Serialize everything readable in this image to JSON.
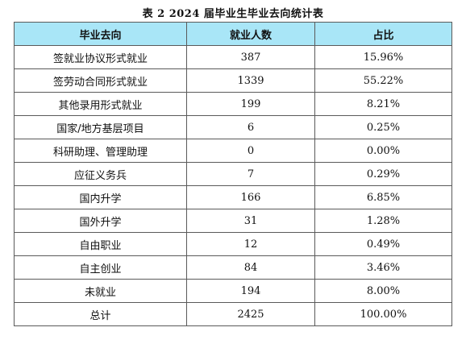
{
  "caption": "表 2   2024 届毕业生毕业去向统计表",
  "table": {
    "headers": [
      "毕业去向",
      "就业人数",
      "占比"
    ],
    "rows": [
      {
        "destination": "签就业协议形式就业",
        "count": "387",
        "ratio": "15.96%"
      },
      {
        "destination": "签劳动合同形式就业",
        "count": "1339",
        "ratio": "55.22%"
      },
      {
        "destination": "其他录用形式就业",
        "count": "199",
        "ratio": "8.21%"
      },
      {
        "destination": "国家/地方基层项目",
        "count": "6",
        "ratio": "0.25%"
      },
      {
        "destination": "科研助理、管理助理",
        "count": "0",
        "ratio": "0.00%"
      },
      {
        "destination": "应征义务兵",
        "count": "7",
        "ratio": "0.29%"
      },
      {
        "destination": "国内升学",
        "count": "166",
        "ratio": "6.85%"
      },
      {
        "destination": "国外升学",
        "count": "31",
        "ratio": "1.28%"
      },
      {
        "destination": "自由职业",
        "count": "12",
        "ratio": "0.49%"
      },
      {
        "destination": "自主创业",
        "count": "84",
        "ratio": "3.46%"
      },
      {
        "destination": "未就业",
        "count": "194",
        "ratio": "8.00%"
      },
      {
        "destination": "总计",
        "count": "2425",
        "ratio": "100.00%"
      }
    ]
  }
}
